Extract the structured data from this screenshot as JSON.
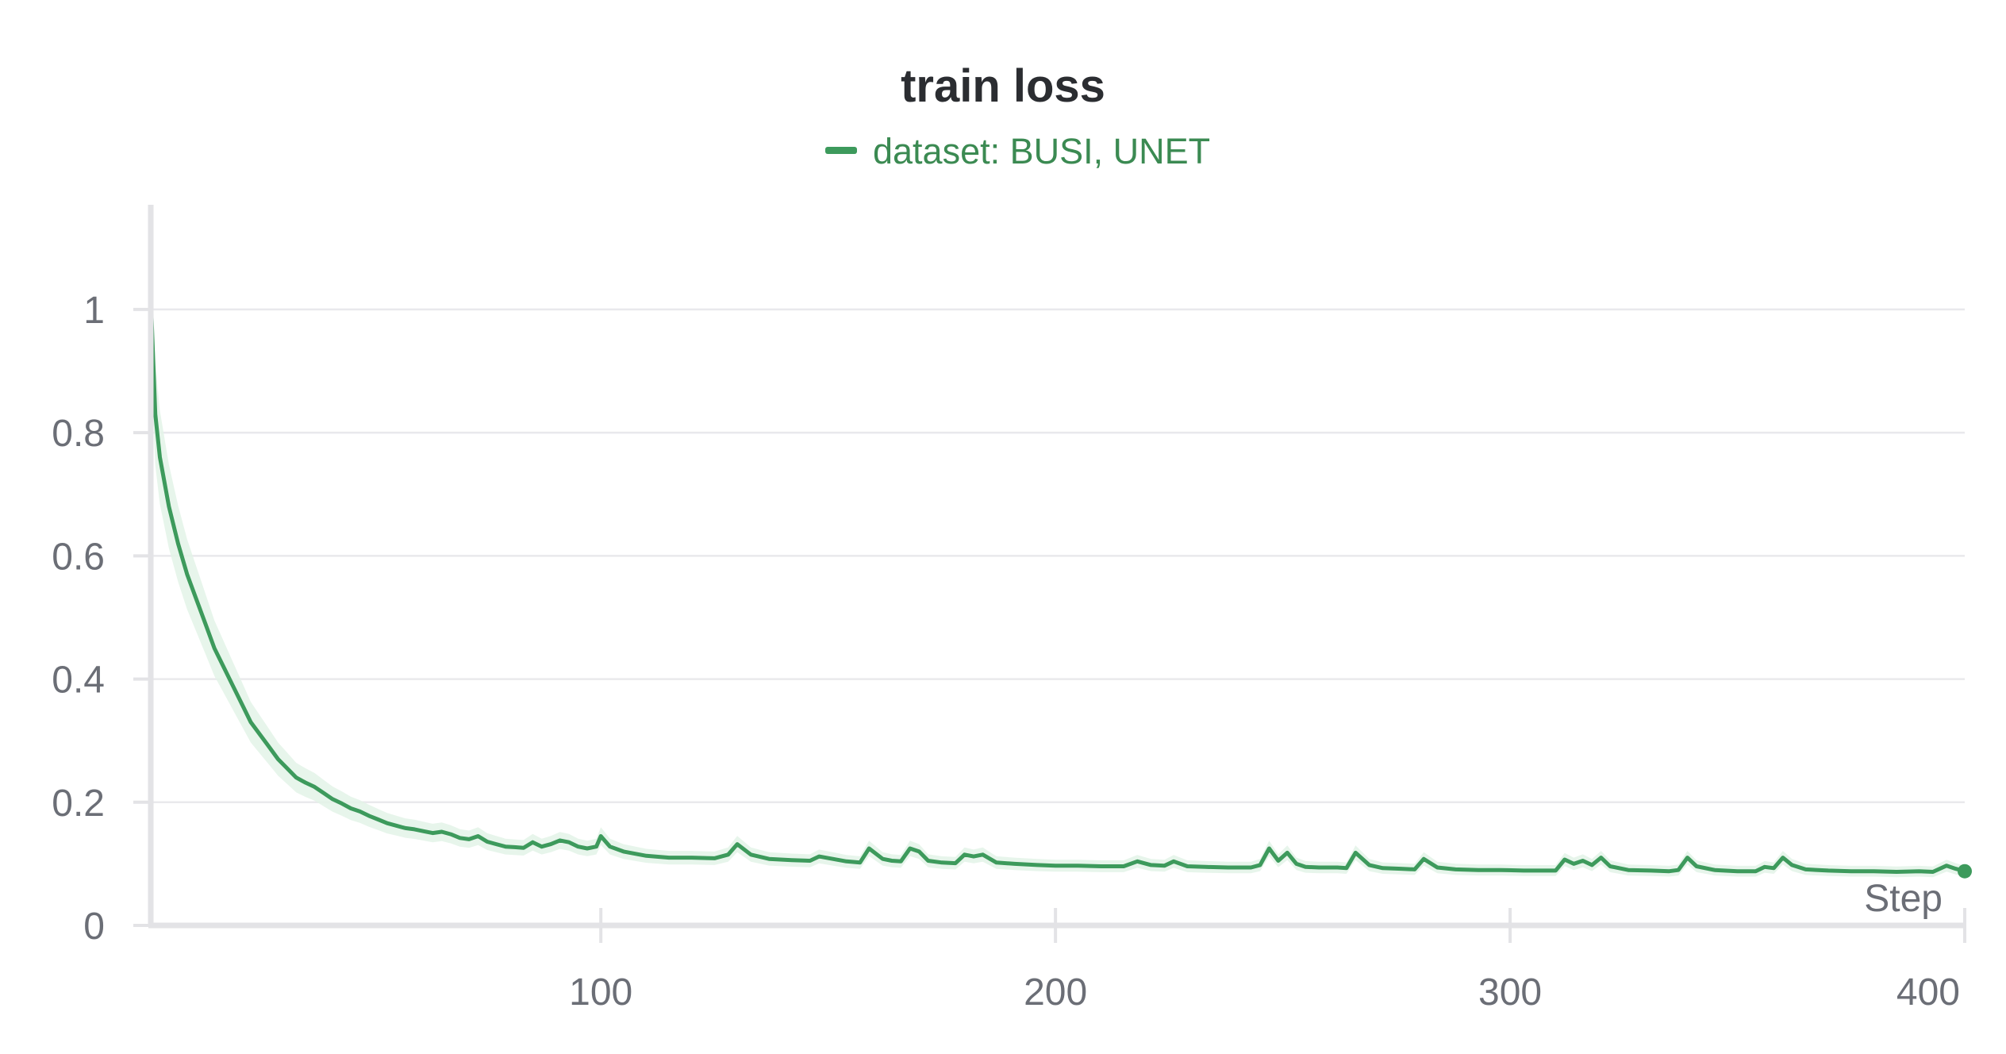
{
  "chart_data": {
    "type": "line",
    "title": "train loss",
    "xlabel": "Step",
    "ylabel": "",
    "xlim": [
      1,
      400
    ],
    "ylim": [
      0,
      1.17
    ],
    "grid": true,
    "legend_position": "top-center",
    "y_ticks": [
      {
        "value": 0,
        "label": "0"
      },
      {
        "value": 0.2,
        "label": "0.2"
      },
      {
        "value": 0.4,
        "label": "0.4"
      },
      {
        "value": 0.6,
        "label": "0.6"
      },
      {
        "value": 0.8,
        "label": "0.8"
      },
      {
        "value": 1,
        "label": "1"
      }
    ],
    "x_ticks": [
      {
        "value": 100,
        "label": "100"
      },
      {
        "value": 200,
        "label": "200"
      },
      {
        "value": 300,
        "label": "300"
      },
      {
        "value": 400,
        "label": "400"
      }
    ],
    "series": [
      {
        "name": "dataset: BUSI, UNET",
        "color": "#3d9a5c",
        "band_color": "#e3f3e8",
        "points": [
          [
            1,
            1.02
          ],
          [
            2,
            0.83
          ],
          [
            3,
            0.76
          ],
          [
            5,
            0.68
          ],
          [
            7,
            0.62
          ],
          [
            9,
            0.57
          ],
          [
            11,
            0.53
          ],
          [
            13,
            0.49
          ],
          [
            15,
            0.45
          ],
          [
            17,
            0.42
          ],
          [
            19,
            0.39
          ],
          [
            21,
            0.36
          ],
          [
            23,
            0.33
          ],
          [
            25,
            0.31
          ],
          [
            27,
            0.29
          ],
          [
            29,
            0.27
          ],
          [
            31,
            0.255
          ],
          [
            33,
            0.24
          ],
          [
            35,
            0.232
          ],
          [
            37,
            0.225
          ],
          [
            39,
            0.215
          ],
          [
            41,
            0.205
          ],
          [
            43,
            0.198
          ],
          [
            45,
            0.19
          ],
          [
            47,
            0.185
          ],
          [
            49,
            0.178
          ],
          [
            51,
            0.172
          ],
          [
            53,
            0.166
          ],
          [
            55,
            0.162
          ],
          [
            57,
            0.158
          ],
          [
            59,
            0.156
          ],
          [
            61,
            0.153
          ],
          [
            63,
            0.15
          ],
          [
            65,
            0.152
          ],
          [
            67,
            0.148
          ],
          [
            69,
            0.142
          ],
          [
            71,
            0.14
          ],
          [
            73,
            0.145
          ],
          [
            75,
            0.136
          ],
          [
            77,
            0.132
          ],
          [
            79,
            0.128
          ],
          [
            81,
            0.127
          ],
          [
            83,
            0.126
          ],
          [
            85,
            0.135
          ],
          [
            87,
            0.128
          ],
          [
            89,
            0.132
          ],
          [
            91,
            0.138
          ],
          [
            93,
            0.135
          ],
          [
            95,
            0.128
          ],
          [
            97,
            0.125
          ],
          [
            99,
            0.128
          ],
          [
            100,
            0.145
          ],
          [
            102,
            0.128
          ],
          [
            105,
            0.12
          ],
          [
            110,
            0.113
          ],
          [
            115,
            0.11
          ],
          [
            120,
            0.11
          ],
          [
            125,
            0.109
          ],
          [
            128,
            0.115
          ],
          [
            130,
            0.132
          ],
          [
            133,
            0.115
          ],
          [
            137,
            0.108
          ],
          [
            142,
            0.106
          ],
          [
            146,
            0.105
          ],
          [
            148,
            0.112
          ],
          [
            151,
            0.108
          ],
          [
            154,
            0.104
          ],
          [
            157,
            0.102
          ],
          [
            159,
            0.125
          ],
          [
            162,
            0.108
          ],
          [
            164,
            0.105
          ],
          [
            166,
            0.104
          ],
          [
            168,
            0.125
          ],
          [
            170,
            0.12
          ],
          [
            172,
            0.105
          ],
          [
            175,
            0.102
          ],
          [
            178,
            0.101
          ],
          [
            180,
            0.115
          ],
          [
            182,
            0.112
          ],
          [
            184,
            0.115
          ],
          [
            187,
            0.102
          ],
          [
            191,
            0.1
          ],
          [
            196,
            0.098
          ],
          [
            200,
            0.097
          ],
          [
            205,
            0.097
          ],
          [
            210,
            0.096
          ],
          [
            215,
            0.096
          ],
          [
            218,
            0.104
          ],
          [
            221,
            0.098
          ],
          [
            224,
            0.097
          ],
          [
            226,
            0.104
          ],
          [
            229,
            0.096
          ],
          [
            233,
            0.095
          ],
          [
            238,
            0.094
          ],
          [
            243,
            0.094
          ],
          [
            245,
            0.098
          ],
          [
            247,
            0.125
          ],
          [
            249,
            0.105
          ],
          [
            251,
            0.118
          ],
          [
            253,
            0.1
          ],
          [
            255,
            0.095
          ],
          [
            258,
            0.094
          ],
          [
            262,
            0.094
          ],
          [
            264,
            0.093
          ],
          [
            266,
            0.118
          ],
          [
            269,
            0.098
          ],
          [
            272,
            0.093
          ],
          [
            276,
            0.092
          ],
          [
            279,
            0.091
          ],
          [
            281,
            0.108
          ],
          [
            284,
            0.094
          ],
          [
            288,
            0.091
          ],
          [
            293,
            0.09
          ],
          [
            298,
            0.09
          ],
          [
            303,
            0.089
          ],
          [
            308,
            0.089
          ],
          [
            310,
            0.089
          ],
          [
            312,
            0.107
          ],
          [
            314,
            0.1
          ],
          [
            316,
            0.105
          ],
          [
            318,
            0.098
          ],
          [
            320,
            0.11
          ],
          [
            322,
            0.096
          ],
          [
            326,
            0.09
          ],
          [
            331,
            0.089
          ],
          [
            335,
            0.088
          ],
          [
            337,
            0.09
          ],
          [
            339,
            0.11
          ],
          [
            341,
            0.096
          ],
          [
            345,
            0.09
          ],
          [
            350,
            0.088
          ],
          [
            354,
            0.088
          ],
          [
            356,
            0.095
          ],
          [
            358,
            0.093
          ],
          [
            360,
            0.11
          ],
          [
            362,
            0.098
          ],
          [
            365,
            0.091
          ],
          [
            370,
            0.089
          ],
          [
            375,
            0.088
          ],
          [
            380,
            0.088
          ],
          [
            385,
            0.087
          ],
          [
            390,
            0.088
          ],
          [
            393,
            0.087
          ],
          [
            396,
            0.097
          ],
          [
            398,
            0.092
          ],
          [
            400,
            0.088
          ]
        ]
      }
    ]
  }
}
